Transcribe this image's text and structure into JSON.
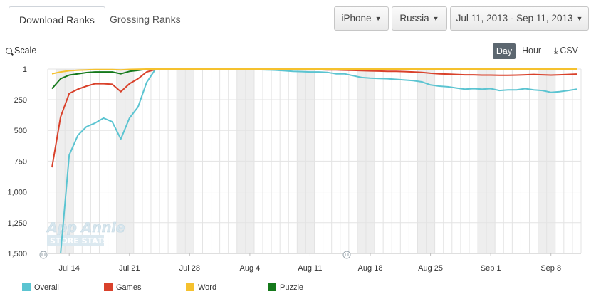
{
  "tabs": [
    {
      "label": "Download Ranks",
      "active": true
    },
    {
      "label": "Grossing Ranks",
      "active": false
    }
  ],
  "filters": {
    "device": "iPhone",
    "country": "Russia",
    "date_range": "Jul 11, 2013 - Sep 11, 2013"
  },
  "toolbar": {
    "scale_label": "Scale",
    "day_label": "Day",
    "hour_label": "Hour",
    "csv_label": "CSV"
  },
  "colors": {
    "overall": "#5bc4d1",
    "games": "#d9412b",
    "word": "#f5c12e",
    "puzzle": "#15791b",
    "grid": "#e3e3e3",
    "weekend": "#eeeeee",
    "active_button": "#5c6770"
  },
  "chart_data": {
    "type": "line",
    "x_start": "2013-07-12",
    "x_end": "2013-09-11",
    "x_ticks": [
      {
        "date": "2013-07-14",
        "label": "Jul 14"
      },
      {
        "date": "2013-07-21",
        "label": "Jul 21"
      },
      {
        "date": "2013-07-28",
        "label": "Jul 28"
      },
      {
        "date": "2013-08-04",
        "label": "Aug 4"
      },
      {
        "date": "2013-08-11",
        "label": "Aug 11"
      },
      {
        "date": "2013-08-18",
        "label": "Aug 18"
      },
      {
        "date": "2013-08-25",
        "label": "Aug 25"
      },
      {
        "date": "2013-09-01",
        "label": "Sep 1"
      },
      {
        "date": "2013-09-08",
        "label": "Sep 8"
      }
    ],
    "y_reversed": true,
    "ylim": [
      1,
      1500
    ],
    "y_ticks": [
      {
        "value": 1,
        "label": "1"
      },
      {
        "value": 250,
        "label": "250"
      },
      {
        "value": 500,
        "label": "500"
      },
      {
        "value": 750,
        "label": "750"
      },
      {
        "value": 1000,
        "label": "1,000"
      },
      {
        "value": 1250,
        "label": "1,250"
      },
      {
        "value": 1500,
        "label": "1,500"
      }
    ],
    "grid": true,
    "legend_position": "bottom",
    "watermark": [
      "App Annie",
      "STORE STATS"
    ],
    "series": [
      {
        "name": "Overall",
        "color": "#5bc4d1",
        "points": [
          [
            "2013-07-13",
            1500
          ],
          [
            "2013-07-14",
            700
          ],
          [
            "2013-07-15",
            540
          ],
          [
            "2013-07-16",
            470
          ],
          [
            "2013-07-17",
            440
          ],
          [
            "2013-07-18",
            400
          ],
          [
            "2013-07-19",
            430
          ],
          [
            "2013-07-20",
            570
          ],
          [
            "2013-07-21",
            400
          ],
          [
            "2013-07-22",
            310
          ],
          [
            "2013-07-23",
            110
          ],
          [
            "2013-07-24",
            5
          ],
          [
            "2013-07-25",
            1
          ],
          [
            "2013-07-26",
            1
          ],
          [
            "2013-07-27",
            1
          ],
          [
            "2013-07-28",
            1
          ],
          [
            "2013-07-29",
            1
          ],
          [
            "2013-07-30",
            1
          ],
          [
            "2013-07-31",
            1
          ],
          [
            "2013-08-01",
            1
          ],
          [
            "2013-08-02",
            2
          ],
          [
            "2013-08-03",
            3
          ],
          [
            "2013-08-04",
            4
          ],
          [
            "2013-08-05",
            6
          ],
          [
            "2013-08-06",
            8
          ],
          [
            "2013-08-07",
            10
          ],
          [
            "2013-08-08",
            15
          ],
          [
            "2013-08-09",
            20
          ],
          [
            "2013-08-10",
            22
          ],
          [
            "2013-08-11",
            25
          ],
          [
            "2013-08-12",
            25
          ],
          [
            "2013-08-13",
            28
          ],
          [
            "2013-08-14",
            40
          ],
          [
            "2013-08-15",
            40
          ],
          [
            "2013-08-16",
            55
          ],
          [
            "2013-08-17",
            70
          ],
          [
            "2013-08-18",
            75
          ],
          [
            "2013-08-19",
            78
          ],
          [
            "2013-08-20",
            80
          ],
          [
            "2013-08-21",
            85
          ],
          [
            "2013-08-22",
            90
          ],
          [
            "2013-08-23",
            95
          ],
          [
            "2013-08-24",
            105
          ],
          [
            "2013-08-25",
            130
          ],
          [
            "2013-08-26",
            140
          ],
          [
            "2013-08-27",
            145
          ],
          [
            "2013-08-28",
            155
          ],
          [
            "2013-08-29",
            165
          ],
          [
            "2013-08-30",
            160
          ],
          [
            "2013-08-31",
            165
          ],
          [
            "2013-09-01",
            160
          ],
          [
            "2013-09-02",
            175
          ],
          [
            "2013-09-03",
            170
          ],
          [
            "2013-09-04",
            170
          ],
          [
            "2013-09-05",
            160
          ],
          [
            "2013-09-06",
            170
          ],
          [
            "2013-09-07",
            175
          ],
          [
            "2013-09-08",
            190
          ],
          [
            "2013-09-09",
            185
          ],
          [
            "2013-09-10",
            175
          ],
          [
            "2013-09-11",
            165
          ]
        ]
      },
      {
        "name": "Games",
        "color": "#d9412b",
        "points": [
          [
            "2013-07-12",
            800
          ],
          [
            "2013-07-13",
            390
          ],
          [
            "2013-07-14",
            200
          ],
          [
            "2013-07-15",
            165
          ],
          [
            "2013-07-16",
            140
          ],
          [
            "2013-07-17",
            120
          ],
          [
            "2013-07-18",
            120
          ],
          [
            "2013-07-19",
            125
          ],
          [
            "2013-07-20",
            185
          ],
          [
            "2013-07-21",
            120
          ],
          [
            "2013-07-22",
            80
          ],
          [
            "2013-07-23",
            25
          ],
          [
            "2013-07-24",
            5
          ],
          [
            "2013-07-25",
            1
          ],
          [
            "2013-07-26",
            1
          ],
          [
            "2013-07-27",
            1
          ],
          [
            "2013-07-28",
            1
          ],
          [
            "2013-07-29",
            1
          ],
          [
            "2013-07-30",
            1
          ],
          [
            "2013-07-31",
            1
          ],
          [
            "2013-08-01",
            1
          ],
          [
            "2013-08-02",
            1
          ],
          [
            "2013-08-03",
            1
          ],
          [
            "2013-08-04",
            2
          ],
          [
            "2013-08-05",
            2
          ],
          [
            "2013-08-06",
            2
          ],
          [
            "2013-08-07",
            3
          ],
          [
            "2013-08-08",
            3
          ],
          [
            "2013-08-09",
            4
          ],
          [
            "2013-08-10",
            5
          ],
          [
            "2013-08-11",
            5
          ],
          [
            "2013-08-12",
            6
          ],
          [
            "2013-08-13",
            8
          ],
          [
            "2013-08-14",
            8
          ],
          [
            "2013-08-15",
            10
          ],
          [
            "2013-08-16",
            12
          ],
          [
            "2013-08-17",
            14
          ],
          [
            "2013-08-18",
            16
          ],
          [
            "2013-08-19",
            18
          ],
          [
            "2013-08-20",
            20
          ],
          [
            "2013-08-21",
            20
          ],
          [
            "2013-08-22",
            22
          ],
          [
            "2013-08-23",
            25
          ],
          [
            "2013-08-24",
            28
          ],
          [
            "2013-08-25",
            35
          ],
          [
            "2013-08-26",
            40
          ],
          [
            "2013-08-27",
            42
          ],
          [
            "2013-08-28",
            45
          ],
          [
            "2013-08-29",
            48
          ],
          [
            "2013-08-30",
            48
          ],
          [
            "2013-08-31",
            50
          ],
          [
            "2013-09-01",
            50
          ],
          [
            "2013-09-02",
            52
          ],
          [
            "2013-09-03",
            52
          ],
          [
            "2013-09-04",
            50
          ],
          [
            "2013-09-05",
            48
          ],
          [
            "2013-09-06",
            45
          ],
          [
            "2013-09-07",
            48
          ],
          [
            "2013-09-08",
            50
          ],
          [
            "2013-09-09",
            48
          ],
          [
            "2013-09-10",
            45
          ],
          [
            "2013-09-11",
            42
          ]
        ]
      },
      {
        "name": "Word",
        "color": "#f5c12e",
        "points": [
          [
            "2013-07-12",
            40
          ],
          [
            "2013-07-13",
            25
          ],
          [
            "2013-07-14",
            15
          ],
          [
            "2013-07-15",
            10
          ],
          [
            "2013-07-16",
            8
          ],
          [
            "2013-07-17",
            5
          ],
          [
            "2013-07-18",
            5
          ],
          [
            "2013-07-19",
            5
          ],
          [
            "2013-07-20",
            8
          ],
          [
            "2013-07-21",
            4
          ],
          [
            "2013-07-22",
            2
          ],
          [
            "2013-07-23",
            1
          ],
          [
            "2013-07-24",
            1
          ],
          [
            "2013-07-25",
            1
          ],
          [
            "2013-07-26",
            1
          ],
          [
            "2013-07-27",
            1
          ],
          [
            "2013-07-28",
            1
          ],
          [
            "2013-07-29",
            1
          ],
          [
            "2013-07-30",
            1
          ],
          [
            "2013-07-31",
            1
          ],
          [
            "2013-08-01",
            1
          ],
          [
            "2013-08-02",
            1
          ],
          [
            "2013-08-03",
            1
          ],
          [
            "2013-08-04",
            1
          ],
          [
            "2013-08-05",
            1
          ],
          [
            "2013-08-06",
            1
          ],
          [
            "2013-08-07",
            1
          ],
          [
            "2013-08-08",
            1
          ],
          [
            "2013-08-09",
            1
          ],
          [
            "2013-08-10",
            1
          ],
          [
            "2013-08-11",
            1
          ],
          [
            "2013-08-12",
            1
          ],
          [
            "2013-08-13",
            1
          ],
          [
            "2013-08-14",
            1
          ],
          [
            "2013-08-15",
            1
          ],
          [
            "2013-08-16",
            1
          ],
          [
            "2013-08-17",
            1
          ],
          [
            "2013-08-18",
            1
          ],
          [
            "2013-08-19",
            1
          ],
          [
            "2013-08-20",
            1
          ],
          [
            "2013-08-21",
            1
          ],
          [
            "2013-08-22",
            1
          ],
          [
            "2013-08-23",
            1
          ],
          [
            "2013-08-24",
            1
          ],
          [
            "2013-08-25",
            1
          ],
          [
            "2013-08-26",
            1
          ],
          [
            "2013-08-27",
            1
          ],
          [
            "2013-08-28",
            1
          ],
          [
            "2013-08-29",
            1
          ],
          [
            "2013-08-30",
            1
          ],
          [
            "2013-08-31",
            1
          ],
          [
            "2013-09-01",
            1
          ],
          [
            "2013-09-02",
            1
          ],
          [
            "2013-09-03",
            1
          ],
          [
            "2013-09-04",
            1
          ],
          [
            "2013-09-05",
            1
          ],
          [
            "2013-09-06",
            1
          ],
          [
            "2013-09-07",
            1
          ],
          [
            "2013-09-08",
            1
          ],
          [
            "2013-09-09",
            1
          ],
          [
            "2013-09-10",
            1
          ],
          [
            "2013-09-11",
            1
          ]
        ]
      },
      {
        "name": "Puzzle",
        "color": "#15791b",
        "points": [
          [
            "2013-07-12",
            160
          ],
          [
            "2013-07-13",
            80
          ],
          [
            "2013-07-14",
            50
          ],
          [
            "2013-07-15",
            40
          ],
          [
            "2013-07-16",
            30
          ],
          [
            "2013-07-17",
            25
          ],
          [
            "2013-07-18",
            25
          ],
          [
            "2013-07-19",
            25
          ],
          [
            "2013-07-20",
            40
          ],
          [
            "2013-07-21",
            20
          ],
          [
            "2013-07-22",
            12
          ],
          [
            "2013-07-23",
            3
          ],
          [
            "2013-07-24",
            1
          ],
          [
            "2013-07-25",
            1
          ],
          [
            "2013-07-26",
            1
          ],
          [
            "2013-07-27",
            1
          ],
          [
            "2013-07-28",
            1
          ],
          [
            "2013-07-29",
            1
          ],
          [
            "2013-07-30",
            1
          ],
          [
            "2013-07-31",
            1
          ],
          [
            "2013-08-01",
            1
          ],
          [
            "2013-08-02",
            1
          ],
          [
            "2013-08-03",
            1
          ],
          [
            "2013-08-04",
            1
          ],
          [
            "2013-08-05",
            1
          ],
          [
            "2013-08-06",
            1
          ],
          [
            "2013-08-07",
            1
          ],
          [
            "2013-08-08",
            1
          ],
          [
            "2013-08-09",
            1
          ],
          [
            "2013-08-10",
            1
          ],
          [
            "2013-08-11",
            1
          ],
          [
            "2013-08-12",
            1
          ],
          [
            "2013-08-13",
            1
          ],
          [
            "2013-08-14",
            1
          ],
          [
            "2013-08-15",
            1
          ],
          [
            "2013-08-16",
            2
          ],
          [
            "2013-08-17",
            2
          ],
          [
            "2013-08-18",
            2
          ],
          [
            "2013-08-19",
            3
          ],
          [
            "2013-08-20",
            3
          ],
          [
            "2013-08-21",
            3
          ],
          [
            "2013-08-22",
            3
          ],
          [
            "2013-08-23",
            4
          ],
          [
            "2013-08-24",
            4
          ],
          [
            "2013-08-25",
            5
          ],
          [
            "2013-08-26",
            5
          ],
          [
            "2013-08-27",
            5
          ],
          [
            "2013-08-28",
            6
          ],
          [
            "2013-08-29",
            6
          ],
          [
            "2013-08-30",
            6
          ],
          [
            "2013-08-31",
            6
          ],
          [
            "2013-09-01",
            6
          ],
          [
            "2013-09-02",
            6
          ],
          [
            "2013-09-03",
            6
          ],
          [
            "2013-09-04",
            6
          ],
          [
            "2013-09-05",
            6
          ],
          [
            "2013-09-06",
            6
          ],
          [
            "2013-09-07",
            6
          ],
          [
            "2013-09-08",
            6
          ],
          [
            "2013-09-09",
            6
          ],
          [
            "2013-09-10",
            6
          ],
          [
            "2013-09-11",
            6
          ]
        ]
      }
    ]
  }
}
